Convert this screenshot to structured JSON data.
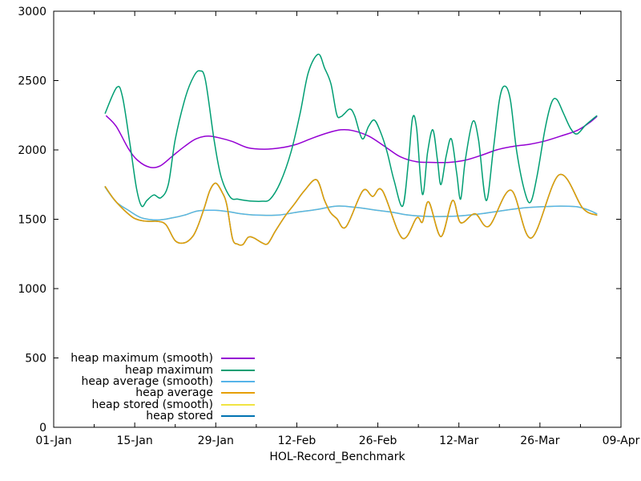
{
  "chart_data": {
    "type": "line",
    "title": "",
    "xlabel": "HOL-Record_Benchmark",
    "background": "#ffffff",
    "axis_color": "#000000",
    "grid": false,
    "legend_position": "inside bottom-left, right-aligned labels with line swatches",
    "x_axis": {
      "unit": "date (days since 01-Jan)",
      "range_days": [
        0,
        98
      ],
      "major_ticks": [
        {
          "day": 0,
          "label": "01-Jan"
        },
        {
          "day": 14,
          "label": "15-Jan"
        },
        {
          "day": 28,
          "label": "29-Jan"
        },
        {
          "day": 42,
          "label": "12-Feb"
        },
        {
          "day": 56,
          "label": "26-Feb"
        },
        {
          "day": 70,
          "label": "12-Mar"
        },
        {
          "day": 84,
          "label": "26-Mar"
        },
        {
          "day": 98,
          "label": "09-Apr"
        }
      ],
      "minor_tick_days": [
        7,
        21,
        35,
        49,
        63,
        77,
        91
      ]
    },
    "y_axis": {
      "range": [
        0,
        3000
      ],
      "tick_step": 500,
      "tick_values": [
        0,
        500,
        1000,
        1500,
        2000,
        2500,
        3000
      ]
    },
    "series": [
      {
        "name": "heap maximum (smooth)",
        "color": "#9400d3",
        "z": 5,
        "points": [
          [
            9.1,
            2245
          ],
          [
            10.8,
            2170
          ],
          [
            12.9,
            2010
          ],
          [
            14.5,
            1925
          ],
          [
            16.6,
            1875
          ],
          [
            18.4,
            1885
          ],
          [
            20.5,
            1955
          ],
          [
            22.6,
            2025
          ],
          [
            24.6,
            2080
          ],
          [
            26.7,
            2100
          ],
          [
            28.8,
            2085
          ],
          [
            30.9,
            2060
          ],
          [
            33.6,
            2015
          ],
          [
            36.4,
            2005
          ],
          [
            39.2,
            2015
          ],
          [
            41.9,
            2040
          ],
          [
            44.7,
            2085
          ],
          [
            47.5,
            2125
          ],
          [
            49.6,
            2145
          ],
          [
            51.6,
            2140
          ],
          [
            54.4,
            2100
          ],
          [
            57.2,
            2025
          ],
          [
            59.9,
            1950
          ],
          [
            62.7,
            1915
          ],
          [
            65.5,
            1910
          ],
          [
            68.2,
            1910
          ],
          [
            71,
            1925
          ],
          [
            73.8,
            1960
          ],
          [
            76.5,
            2000
          ],
          [
            79.3,
            2025
          ],
          [
            82.1,
            2040
          ],
          [
            84.9,
            2065
          ],
          [
            87.6,
            2100
          ],
          [
            90.4,
            2140
          ],
          [
            92.5,
            2195
          ],
          [
            93.8,
            2240
          ]
        ]
      },
      {
        "name": "heap maximum",
        "color": "#009e73",
        "z": 6,
        "points": [
          [
            8.9,
            2265
          ],
          [
            10.9,
            2450
          ],
          [
            11.9,
            2380
          ],
          [
            13.2,
            2035
          ],
          [
            14.3,
            1725
          ],
          [
            15.2,
            1595
          ],
          [
            16.1,
            1635
          ],
          [
            17.3,
            1675
          ],
          [
            18.5,
            1655
          ],
          [
            19.8,
            1750
          ],
          [
            21,
            2075
          ],
          [
            22.8,
            2385
          ],
          [
            24.2,
            2530
          ],
          [
            25.2,
            2570
          ],
          [
            26.2,
            2505
          ],
          [
            27.7,
            2075
          ],
          [
            28.9,
            1810
          ],
          [
            30.5,
            1660
          ],
          [
            31.8,
            1645
          ],
          [
            33.2,
            1635
          ],
          [
            34.6,
            1630
          ],
          [
            36,
            1630
          ],
          [
            37.4,
            1645
          ],
          [
            39.2,
            1770
          ],
          [
            41,
            1985
          ],
          [
            42.6,
            2270
          ],
          [
            44,
            2560
          ],
          [
            45.7,
            2690
          ],
          [
            46.8,
            2590
          ],
          [
            47.9,
            2475
          ],
          [
            48.9,
            2255
          ],
          [
            49.6,
            2240
          ],
          [
            50.2,
            2260
          ],
          [
            51.2,
            2295
          ],
          [
            52,
            2245
          ],
          [
            53.3,
            2080
          ],
          [
            54.4,
            2170
          ],
          [
            55.4,
            2215
          ],
          [
            56.5,
            2125
          ],
          [
            57.6,
            1985
          ],
          [
            58.8,
            1780
          ],
          [
            60.3,
            1595
          ],
          [
            61.3,
            1925
          ],
          [
            62,
            2230
          ],
          [
            62.7,
            2155
          ],
          [
            63.7,
            1680
          ],
          [
            64.6,
            1985
          ],
          [
            65.5,
            2145
          ],
          [
            66.3,
            1925
          ],
          [
            66.9,
            1750
          ],
          [
            67.8,
            1955
          ],
          [
            68.7,
            2080
          ],
          [
            69.6,
            1840
          ],
          [
            70.3,
            1645
          ],
          [
            71.1,
            1925
          ],
          [
            72.4,
            2205
          ],
          [
            73.4,
            2070
          ],
          [
            74.7,
            1635
          ],
          [
            75.9,
            1985
          ],
          [
            77,
            2360
          ],
          [
            77.9,
            2460
          ],
          [
            78.9,
            2360
          ],
          [
            80,
            1985
          ],
          [
            81.4,
            1695
          ],
          [
            82.4,
            1625
          ],
          [
            83.5,
            1810
          ],
          [
            84.9,
            2155
          ],
          [
            86,
            2340
          ],
          [
            86.9,
            2365
          ],
          [
            88,
            2270
          ],
          [
            89.3,
            2155
          ],
          [
            90.4,
            2115
          ],
          [
            91.8,
            2175
          ],
          [
            92.9,
            2215
          ],
          [
            93.8,
            2245
          ]
        ]
      },
      {
        "name": "heap average (smooth)",
        "color": "#56b4e9",
        "z": 3,
        "points": [
          [
            8.9,
            1730
          ],
          [
            10.8,
            1625
          ],
          [
            12.9,
            1565
          ],
          [
            15.2,
            1510
          ],
          [
            18,
            1495
          ],
          [
            20.5,
            1510
          ],
          [
            22.6,
            1530
          ],
          [
            24.9,
            1560
          ],
          [
            27.7,
            1565
          ],
          [
            30.2,
            1555
          ],
          [
            32.3,
            1540
          ],
          [
            35,
            1530
          ],
          [
            38.8,
            1530
          ],
          [
            41.9,
            1550
          ],
          [
            45.4,
            1570
          ],
          [
            48.9,
            1595
          ],
          [
            52.3,
            1585
          ],
          [
            55.8,
            1565
          ],
          [
            58.6,
            1550
          ],
          [
            61.3,
            1530
          ],
          [
            64.8,
            1520
          ],
          [
            67.5,
            1520
          ],
          [
            70.3,
            1525
          ],
          [
            73.8,
            1540
          ],
          [
            77.2,
            1560
          ],
          [
            80.7,
            1580
          ],
          [
            84.2,
            1590
          ],
          [
            87.6,
            1595
          ],
          [
            90.4,
            1590
          ],
          [
            92.5,
            1565
          ],
          [
            93.8,
            1540
          ]
        ]
      },
      {
        "name": "heap average",
        "color": "#e69f00",
        "z": 4,
        "points": [
          [
            8.9,
            1735
          ],
          [
            10.4,
            1645
          ],
          [
            12.2,
            1565
          ],
          [
            13.8,
            1510
          ],
          [
            15.2,
            1490
          ],
          [
            16.6,
            1485
          ],
          [
            18,
            1485
          ],
          [
            19.4,
            1460
          ],
          [
            21,
            1345
          ],
          [
            22.6,
            1330
          ],
          [
            24,
            1375
          ],
          [
            24.9,
            1450
          ],
          [
            26,
            1580
          ],
          [
            27,
            1710
          ],
          [
            28,
            1760
          ],
          [
            29.1,
            1695
          ],
          [
            29.9,
            1605
          ],
          [
            30.9,
            1360
          ],
          [
            31.8,
            1320
          ],
          [
            32.7,
            1318
          ],
          [
            33.6,
            1370
          ],
          [
            34.6,
            1365
          ],
          [
            36,
            1330
          ],
          [
            37,
            1325
          ],
          [
            38.3,
            1415
          ],
          [
            40.1,
            1530
          ],
          [
            41.5,
            1605
          ],
          [
            43.3,
            1705
          ],
          [
            45.4,
            1785
          ],
          [
            46.8,
            1635
          ],
          [
            47.8,
            1550
          ],
          [
            48.9,
            1505
          ],
          [
            50.5,
            1445
          ],
          [
            53.4,
            1705
          ],
          [
            55.1,
            1665
          ],
          [
            56.8,
            1705
          ],
          [
            60.2,
            1365
          ],
          [
            62.7,
            1510
          ],
          [
            63.7,
            1480
          ],
          [
            64.8,
            1625
          ],
          [
            66.9,
            1375
          ],
          [
            68.9,
            1635
          ],
          [
            70.3,
            1475
          ],
          [
            72.8,
            1540
          ],
          [
            75.2,
            1450
          ],
          [
            79,
            1710
          ],
          [
            82.5,
            1365
          ],
          [
            87.3,
            1820
          ],
          [
            91.4,
            1580
          ],
          [
            93.8,
            1530
          ]
        ]
      },
      {
        "name": "heap stored (smooth)",
        "color": "#f0e442",
        "z": 1,
        "points": [
          [
            8.9,
            1730
          ],
          [
            10.8,
            1625
          ],
          [
            12.9,
            1565
          ],
          [
            15.2,
            1510
          ],
          [
            18,
            1495
          ],
          [
            20.5,
            1510
          ],
          [
            22.6,
            1530
          ],
          [
            24.9,
            1560
          ],
          [
            27.7,
            1565
          ],
          [
            30.2,
            1555
          ],
          [
            32.3,
            1540
          ],
          [
            35,
            1530
          ],
          [
            38.8,
            1530
          ],
          [
            41.9,
            1550
          ],
          [
            45.4,
            1570
          ],
          [
            48.9,
            1595
          ],
          [
            52.3,
            1585
          ],
          [
            55.8,
            1565
          ],
          [
            58.6,
            1550
          ],
          [
            61.3,
            1530
          ],
          [
            64.8,
            1520
          ],
          [
            67.5,
            1520
          ],
          [
            70.3,
            1525
          ],
          [
            73.8,
            1540
          ],
          [
            77.2,
            1560
          ],
          [
            80.7,
            1580
          ],
          [
            84.2,
            1590
          ],
          [
            87.6,
            1595
          ],
          [
            90.4,
            1590
          ],
          [
            92.5,
            1565
          ],
          [
            93.8,
            1540
          ]
        ]
      },
      {
        "name": "heap stored",
        "color": "#0072b2",
        "z": 2,
        "points": [
          [
            8.9,
            1735
          ],
          [
            10.4,
            1645
          ],
          [
            12.2,
            1565
          ],
          [
            13.8,
            1510
          ],
          [
            15.2,
            1490
          ],
          [
            16.6,
            1485
          ],
          [
            18,
            1485
          ],
          [
            19.4,
            1460
          ],
          [
            21,
            1345
          ],
          [
            22.6,
            1330
          ],
          [
            24,
            1375
          ],
          [
            24.9,
            1450
          ],
          [
            26,
            1580
          ],
          [
            27,
            1710
          ],
          [
            28,
            1760
          ],
          [
            29.1,
            1695
          ],
          [
            29.9,
            1605
          ],
          [
            30.9,
            1360
          ],
          [
            31.8,
            1320
          ],
          [
            32.7,
            1318
          ],
          [
            33.6,
            1370
          ],
          [
            34.6,
            1365
          ],
          [
            36,
            1330
          ],
          [
            37,
            1325
          ],
          [
            38.3,
            1415
          ],
          [
            40.1,
            1530
          ],
          [
            41.5,
            1605
          ],
          [
            43.3,
            1705
          ],
          [
            45.4,
            1785
          ],
          [
            46.8,
            1635
          ],
          [
            47.8,
            1550
          ],
          [
            48.9,
            1505
          ],
          [
            50.5,
            1445
          ],
          [
            53.4,
            1705
          ],
          [
            55.1,
            1665
          ],
          [
            56.8,
            1705
          ],
          [
            60.2,
            1365
          ],
          [
            62.7,
            1510
          ],
          [
            63.7,
            1480
          ],
          [
            64.8,
            1625
          ],
          [
            66.9,
            1375
          ],
          [
            68.9,
            1635
          ],
          [
            70.3,
            1475
          ],
          [
            72.8,
            1540
          ],
          [
            75.2,
            1450
          ],
          [
            79,
            1710
          ],
          [
            82.5,
            1365
          ],
          [
            87.3,
            1820
          ],
          [
            91.4,
            1580
          ],
          [
            93.8,
            1530
          ]
        ]
      }
    ]
  }
}
